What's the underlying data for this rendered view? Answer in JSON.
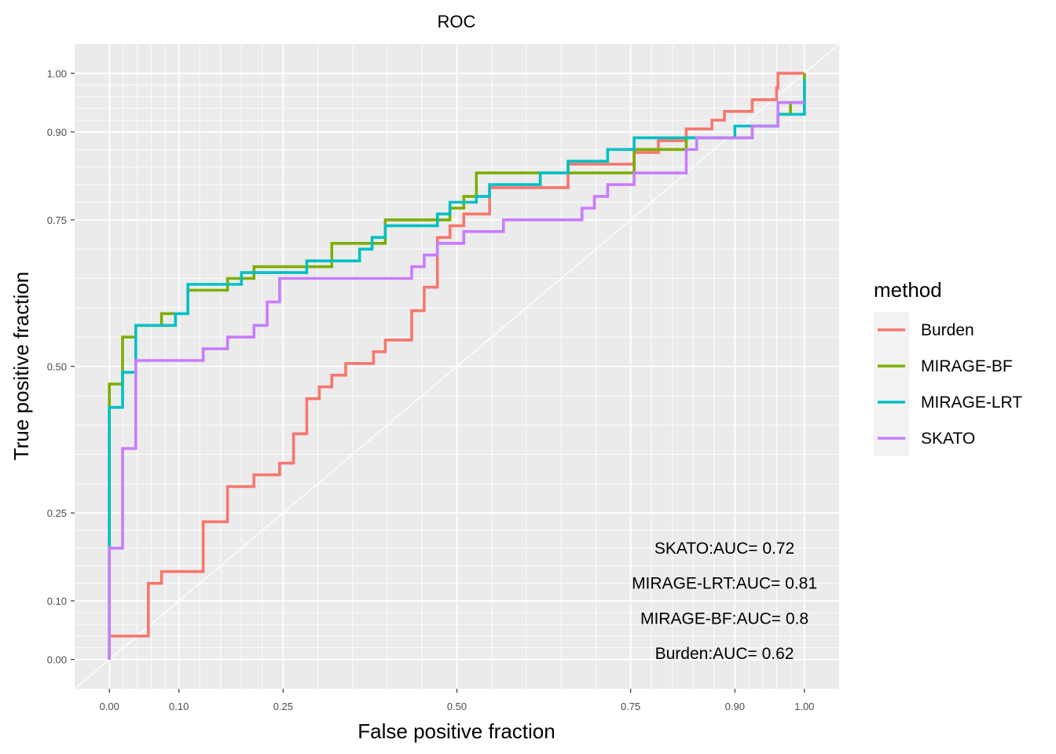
{
  "chart_data": {
    "type": "line",
    "title": "ROC",
    "xlabel": "False positive fraction",
    "ylabel": "True positive fraction",
    "xlim": [
      -0.05,
      1.05
    ],
    "ylim": [
      -0.05,
      1.05
    ],
    "x_ticks": [
      {
        "value": 0.0,
        "label": "0.00"
      },
      {
        "value": 0.1,
        "label": "0.10"
      },
      {
        "value": 0.25,
        "label": "0.25"
      },
      {
        "value": 0.5,
        "label": "0.50"
      },
      {
        "value": 0.75,
        "label": "0.75"
      },
      {
        "value": 0.9,
        "label": "0.90"
      },
      {
        "value": 1.0,
        "label": "1.00"
      }
    ],
    "y_ticks": [
      {
        "value": 0.0,
        "label": "0.00"
      },
      {
        "value": 0.1,
        "label": "0.10"
      },
      {
        "value": 0.25,
        "label": "0.25"
      },
      {
        "value": 0.5,
        "label": "0.50"
      },
      {
        "value": 0.75,
        "label": "0.75"
      },
      {
        "value": 0.9,
        "label": "0.90"
      },
      {
        "value": 1.0,
        "label": "1.00"
      }
    ],
    "grid": true,
    "background": "#ebebeb",
    "diagonal_reference": true,
    "legend": {
      "title": "method",
      "placement": "right"
    },
    "series": [
      {
        "name": "Burden",
        "color": "#F8766D",
        "points": [
          [
            0,
            0
          ],
          [
            0,
            0.04
          ],
          [
            0.056,
            0.04
          ],
          [
            0.056,
            0.13
          ],
          [
            0.075,
            0.13
          ],
          [
            0.075,
            0.15
          ],
          [
            0.135,
            0.15
          ],
          [
            0.135,
            0.235
          ],
          [
            0.17,
            0.235
          ],
          [
            0.17,
            0.295
          ],
          [
            0.208,
            0.295
          ],
          [
            0.208,
            0.315
          ],
          [
            0.245,
            0.315
          ],
          [
            0.245,
            0.335
          ],
          [
            0.265,
            0.335
          ],
          [
            0.265,
            0.385
          ],
          [
            0.284,
            0.385
          ],
          [
            0.284,
            0.445
          ],
          [
            0.302,
            0.445
          ],
          [
            0.302,
            0.465
          ],
          [
            0.32,
            0.465
          ],
          [
            0.32,
            0.485
          ],
          [
            0.34,
            0.485
          ],
          [
            0.34,
            0.505
          ],
          [
            0.38,
            0.505
          ],
          [
            0.38,
            0.525
          ],
          [
            0.397,
            0.525
          ],
          [
            0.397,
            0.545
          ],
          [
            0.435,
            0.545
          ],
          [
            0.435,
            0.595
          ],
          [
            0.453,
            0.595
          ],
          [
            0.453,
            0.635
          ],
          [
            0.472,
            0.635
          ],
          [
            0.472,
            0.72
          ],
          [
            0.49,
            0.72
          ],
          [
            0.49,
            0.74
          ],
          [
            0.51,
            0.74
          ],
          [
            0.51,
            0.76
          ],
          [
            0.547,
            0.76
          ],
          [
            0.547,
            0.805
          ],
          [
            0.66,
            0.805
          ],
          [
            0.66,
            0.845
          ],
          [
            0.755,
            0.845
          ],
          [
            0.755,
            0.865
          ],
          [
            0.79,
            0.865
          ],
          [
            0.79,
            0.885
          ],
          [
            0.83,
            0.885
          ],
          [
            0.83,
            0.905
          ],
          [
            0.867,
            0.905
          ],
          [
            0.867,
            0.92
          ],
          [
            0.885,
            0.92
          ],
          [
            0.885,
            0.935
          ],
          [
            0.925,
            0.935
          ],
          [
            0.925,
            0.955
          ],
          [
            0.96,
            0.955
          ],
          [
            0.96,
            0.975
          ],
          [
            0.962,
            0.975
          ],
          [
            0.962,
            1.0
          ],
          [
            1.0,
            1.0
          ]
        ]
      },
      {
        "name": "MIRAGE-BF",
        "color": "#7CAE00",
        "points": [
          [
            0,
            0
          ],
          [
            0,
            0.47
          ],
          [
            0.019,
            0.47
          ],
          [
            0.019,
            0.55
          ],
          [
            0.038,
            0.55
          ],
          [
            0.038,
            0.57
          ],
          [
            0.075,
            0.57
          ],
          [
            0.075,
            0.59
          ],
          [
            0.113,
            0.59
          ],
          [
            0.113,
            0.63
          ],
          [
            0.17,
            0.63
          ],
          [
            0.17,
            0.65
          ],
          [
            0.208,
            0.65
          ],
          [
            0.208,
            0.67
          ],
          [
            0.32,
            0.67
          ],
          [
            0.32,
            0.71
          ],
          [
            0.397,
            0.71
          ],
          [
            0.397,
            0.75
          ],
          [
            0.49,
            0.75
          ],
          [
            0.49,
            0.77
          ],
          [
            0.51,
            0.77
          ],
          [
            0.51,
            0.79
          ],
          [
            0.528,
            0.79
          ],
          [
            0.528,
            0.83
          ],
          [
            0.755,
            0.83
          ],
          [
            0.755,
            0.87
          ],
          [
            0.83,
            0.87
          ],
          [
            0.83,
            0.89
          ],
          [
            0.925,
            0.89
          ],
          [
            0.925,
            0.91
          ],
          [
            0.962,
            0.91
          ],
          [
            0.962,
            0.93
          ],
          [
            0.98,
            0.93
          ],
          [
            0.98,
            0.95
          ],
          [
            1.0,
            0.95
          ],
          [
            1.0,
            1.0
          ]
        ]
      },
      {
        "name": "MIRAGE-LRT",
        "color": "#00BFC4",
        "points": [
          [
            0,
            0
          ],
          [
            0,
            0.19
          ],
          [
            0,
            0.43
          ],
          [
            0.019,
            0.43
          ],
          [
            0.019,
            0.49
          ],
          [
            0.038,
            0.49
          ],
          [
            0.038,
            0.57
          ],
          [
            0.095,
            0.57
          ],
          [
            0.095,
            0.59
          ],
          [
            0.113,
            0.59
          ],
          [
            0.113,
            0.64
          ],
          [
            0.19,
            0.64
          ],
          [
            0.19,
            0.66
          ],
          [
            0.284,
            0.66
          ],
          [
            0.284,
            0.68
          ],
          [
            0.36,
            0.68
          ],
          [
            0.36,
            0.7
          ],
          [
            0.378,
            0.7
          ],
          [
            0.378,
            0.72
          ],
          [
            0.397,
            0.72
          ],
          [
            0.397,
            0.74
          ],
          [
            0.472,
            0.74
          ],
          [
            0.472,
            0.76
          ],
          [
            0.49,
            0.76
          ],
          [
            0.49,
            0.78
          ],
          [
            0.528,
            0.78
          ],
          [
            0.528,
            0.79
          ],
          [
            0.547,
            0.79
          ],
          [
            0.547,
            0.81
          ],
          [
            0.62,
            0.81
          ],
          [
            0.62,
            0.83
          ],
          [
            0.66,
            0.83
          ],
          [
            0.66,
            0.85
          ],
          [
            0.717,
            0.85
          ],
          [
            0.717,
            0.87
          ],
          [
            0.755,
            0.87
          ],
          [
            0.755,
            0.89
          ],
          [
            0.9,
            0.89
          ],
          [
            0.9,
            0.91
          ],
          [
            0.962,
            0.91
          ],
          [
            0.962,
            0.93
          ],
          [
            1.0,
            0.93
          ],
          [
            1.0,
            0.99
          ]
        ]
      },
      {
        "name": "SKATO",
        "color": "#C77CFF",
        "points": [
          [
            0,
            0
          ],
          [
            0,
            0.19
          ],
          [
            0.019,
            0.19
          ],
          [
            0.019,
            0.36
          ],
          [
            0.038,
            0.36
          ],
          [
            0.038,
            0.51
          ],
          [
            0.135,
            0.51
          ],
          [
            0.135,
            0.53
          ],
          [
            0.17,
            0.53
          ],
          [
            0.17,
            0.55
          ],
          [
            0.208,
            0.55
          ],
          [
            0.208,
            0.57
          ],
          [
            0.227,
            0.57
          ],
          [
            0.227,
            0.61
          ],
          [
            0.245,
            0.61
          ],
          [
            0.245,
            0.65
          ],
          [
            0.435,
            0.65
          ],
          [
            0.435,
            0.67
          ],
          [
            0.453,
            0.67
          ],
          [
            0.453,
            0.69
          ],
          [
            0.472,
            0.69
          ],
          [
            0.472,
            0.71
          ],
          [
            0.51,
            0.71
          ],
          [
            0.51,
            0.73
          ],
          [
            0.567,
            0.73
          ],
          [
            0.567,
            0.75
          ],
          [
            0.68,
            0.75
          ],
          [
            0.68,
            0.77
          ],
          [
            0.698,
            0.77
          ],
          [
            0.698,
            0.79
          ],
          [
            0.717,
            0.79
          ],
          [
            0.717,
            0.81
          ],
          [
            0.755,
            0.81
          ],
          [
            0.755,
            0.83
          ],
          [
            0.83,
            0.83
          ],
          [
            0.83,
            0.87
          ],
          [
            0.845,
            0.87
          ],
          [
            0.845,
            0.89
          ],
          [
            0.925,
            0.89
          ],
          [
            0.925,
            0.91
          ],
          [
            0.962,
            0.91
          ],
          [
            0.962,
            0.95
          ],
          [
            1.0,
            0.95
          ]
        ]
      }
    ],
    "annotations": [
      {
        "text": "SKATO:AUC= 0.72",
        "x": 0.885,
        "y": 0.19
      },
      {
        "text": "MIRAGE-LRT:AUC= 0.81",
        "x": 0.885,
        "y": 0.13
      },
      {
        "text": "MIRAGE-BF:AUC= 0.8",
        "x": 0.885,
        "y": 0.07
      },
      {
        "text": "Burden:AUC= 0.62",
        "x": 0.885,
        "y": 0.01
      }
    ]
  }
}
